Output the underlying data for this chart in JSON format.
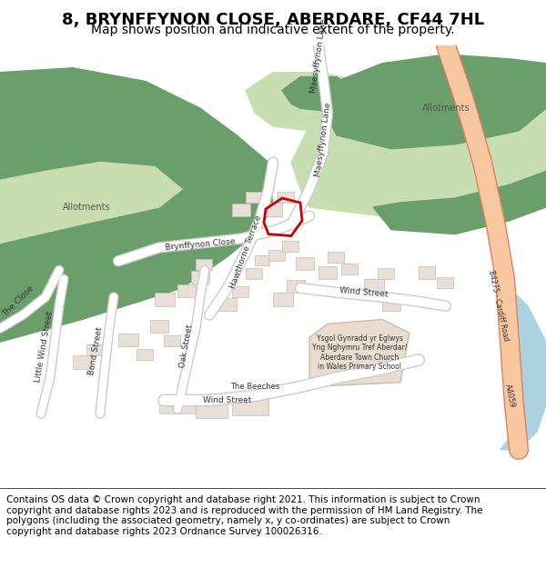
{
  "title": "8, BRYNFFYNON CLOSE, ABERDARE, CF44 7HL",
  "subtitle": "Map shows position and indicative extent of the property.",
  "footer": "Contains OS data © Crown copyright and database right 2021. This information is subject to Crown copyright and database rights 2023 and is reproduced with the permission of HM Land Registry. The polygons (including the associated geometry, namely x, y co-ordinates) are subject to Crown copyright and database rights 2023 Ordnance Survey 100026316.",
  "map_bg": "#f5f4f0",
  "road_color": "#ffffff",
  "road_outline": "#cccccc",
  "building_color": "#e8e0d8",
  "building_outline": "#ccbbaa",
  "allotment_light": "#c8ddb0",
  "allotment_dark": "#6a9e6a",
  "water_color": "#aad3df",
  "road_major_color": "#f9c8a0",
  "road_major_outline": "#e08060",
  "property_outline": "#cc0000",
  "property_fill": "none",
  "title_fontsize": 13,
  "subtitle_fontsize": 10,
  "footer_fontsize": 7.5,
  "figsize": [
    6.0,
    6.25
  ],
  "dpi": 100
}
